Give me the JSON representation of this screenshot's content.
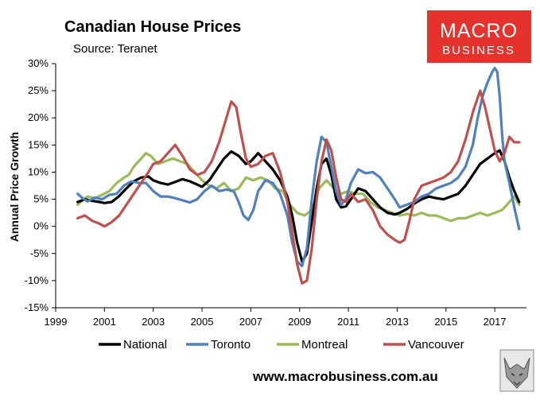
{
  "chart_data": {
    "type": "line",
    "title": "Canadian House Prices",
    "subtitle": "Source: Teranet",
    "xlabel": "",
    "ylabel": "Annual Price Growth",
    "xlim": [
      1999,
      2018.3
    ],
    "ylim": [
      -15,
      30
    ],
    "x_ticks": [
      "1999",
      "2001",
      "2003",
      "2005",
      "2007",
      "2009",
      "2011",
      "2013",
      "2015",
      "2017"
    ],
    "y_ticks": [
      "30%",
      "25%",
      "20%",
      "15%",
      "10%",
      "5%",
      "0%",
      "-5%",
      "-10%",
      "-15%"
    ],
    "grid": false,
    "legend_position": "bottom",
    "series": [
      {
        "name": "National",
        "color": "#000000",
        "points": [
          [
            1999.9,
            4.5
          ],
          [
            2000.2,
            5.0
          ],
          [
            2000.5,
            4.7
          ],
          [
            2000.8,
            4.5
          ],
          [
            2001.0,
            4.3
          ],
          [
            2001.3,
            4.5
          ],
          [
            2001.6,
            5.6
          ],
          [
            2001.9,
            7.0
          ],
          [
            2002.2,
            8.3
          ],
          [
            2002.5,
            9.0
          ],
          [
            2002.8,
            9.2
          ],
          [
            2003.0,
            8.5
          ],
          [
            2003.3,
            8.0
          ],
          [
            2003.6,
            7.7
          ],
          [
            2003.9,
            8.2
          ],
          [
            2004.2,
            8.7
          ],
          [
            2004.5,
            8.3
          ],
          [
            2004.8,
            7.7
          ],
          [
            2005.0,
            7.3
          ],
          [
            2005.3,
            8.5
          ],
          [
            2005.6,
            10.5
          ],
          [
            2005.9,
            12.5
          ],
          [
            2006.2,
            13.8
          ],
          [
            2006.5,
            13.0
          ],
          [
            2006.8,
            11.5
          ],
          [
            2007.0,
            12.0
          ],
          [
            2007.3,
            13.5
          ],
          [
            2007.6,
            12.0
          ],
          [
            2007.9,
            10.5
          ],
          [
            2008.2,
            8.5
          ],
          [
            2008.5,
            5.5
          ],
          [
            2008.7,
            2.0
          ],
          [
            2008.9,
            -3.0
          ],
          [
            2009.1,
            -6.5
          ],
          [
            2009.3,
            -5.0
          ],
          [
            2009.5,
            1.0
          ],
          [
            2009.7,
            7.0
          ],
          [
            2009.9,
            11.5
          ],
          [
            2010.1,
            12.5
          ],
          [
            2010.3,
            9.5
          ],
          [
            2010.5,
            5.0
          ],
          [
            2010.7,
            3.5
          ],
          [
            2010.9,
            3.7
          ],
          [
            2011.1,
            5.0
          ],
          [
            2011.4,
            7.0
          ],
          [
            2011.7,
            6.5
          ],
          [
            2012.0,
            5.0
          ],
          [
            2012.3,
            3.5
          ],
          [
            2012.6,
            2.5
          ],
          [
            2012.9,
            2.2
          ],
          [
            2013.1,
            2.5
          ],
          [
            2013.4,
            3.2
          ],
          [
            2013.7,
            4.2
          ],
          [
            2014.0,
            5.0
          ],
          [
            2014.3,
            5.5
          ],
          [
            2014.6,
            5.2
          ],
          [
            2014.9,
            5.0
          ],
          [
            2015.2,
            5.5
          ],
          [
            2015.5,
            6.0
          ],
          [
            2015.8,
            7.5
          ],
          [
            2016.1,
            9.5
          ],
          [
            2016.4,
            11.5
          ],
          [
            2016.7,
            12.5
          ],
          [
            2017.0,
            13.5
          ],
          [
            2017.2,
            14.0
          ],
          [
            2017.4,
            12.0
          ],
          [
            2017.6,
            9.0
          ],
          [
            2017.8,
            6.5
          ],
          [
            2018.0,
            4.5
          ]
        ]
      },
      {
        "name": "Toronto",
        "color": "#4f81bd",
        "points": [
          [
            1999.9,
            6.0
          ],
          [
            2000.1,
            5.2
          ],
          [
            2000.3,
            4.6
          ],
          [
            2000.6,
            5.3
          ],
          [
            2000.9,
            5.0
          ],
          [
            2001.2,
            5.8
          ],
          [
            2001.5,
            6.0
          ],
          [
            2001.8,
            7.5
          ],
          [
            2002.1,
            8.3
          ],
          [
            2002.4,
            8.0
          ],
          [
            2002.7,
            8.0
          ],
          [
            2003.0,
            6.5
          ],
          [
            2003.3,
            5.5
          ],
          [
            2003.6,
            5.5
          ],
          [
            2003.9,
            5.2
          ],
          [
            2004.2,
            4.8
          ],
          [
            2004.5,
            4.4
          ],
          [
            2004.8,
            5.0
          ],
          [
            2005.1,
            6.5
          ],
          [
            2005.4,
            7.5
          ],
          [
            2005.7,
            6.5
          ],
          [
            2006.0,
            6.8
          ],
          [
            2006.3,
            6.5
          ],
          [
            2006.5,
            4.5
          ],
          [
            2006.7,
            2.0
          ],
          [
            2006.9,
            1.2
          ],
          [
            2007.1,
            3.0
          ],
          [
            2007.3,
            6.5
          ],
          [
            2007.6,
            8.5
          ],
          [
            2007.9,
            8.0
          ],
          [
            2008.2,
            6.0
          ],
          [
            2008.5,
            2.0
          ],
          [
            2008.7,
            -3.0
          ],
          [
            2008.9,
            -6.5
          ],
          [
            2009.1,
            -7.3
          ],
          [
            2009.3,
            -4.0
          ],
          [
            2009.5,
            5.0
          ],
          [
            2009.7,
            12.0
          ],
          [
            2009.9,
            16.5
          ],
          [
            2010.1,
            15.5
          ],
          [
            2010.3,
            11.0
          ],
          [
            2010.5,
            6.5
          ],
          [
            2010.7,
            4.0
          ],
          [
            2010.9,
            5.0
          ],
          [
            2011.1,
            8.0
          ],
          [
            2011.4,
            10.5
          ],
          [
            2011.7,
            9.8
          ],
          [
            2012.0,
            10.0
          ],
          [
            2012.3,
            9.0
          ],
          [
            2012.6,
            7.0
          ],
          [
            2012.9,
            5.0
          ],
          [
            2013.1,
            3.5
          ],
          [
            2013.4,
            4.0
          ],
          [
            2013.7,
            4.5
          ],
          [
            2014.0,
            5.5
          ],
          [
            2014.3,
            6.0
          ],
          [
            2014.6,
            7.0
          ],
          [
            2014.9,
            7.5
          ],
          [
            2015.2,
            8.0
          ],
          [
            2015.5,
            9.0
          ],
          [
            2015.8,
            11.0
          ],
          [
            2016.1,
            15.0
          ],
          [
            2016.3,
            20.0
          ],
          [
            2016.5,
            24.0
          ],
          [
            2016.7,
            26.5
          ],
          [
            2016.9,
            28.5
          ],
          [
            2017.0,
            29.2
          ],
          [
            2017.1,
            28.5
          ],
          [
            2017.2,
            24.0
          ],
          [
            2017.3,
            17.0
          ],
          [
            2017.4,
            12.0
          ],
          [
            2017.6,
            8.0
          ],
          [
            2017.8,
            3.5
          ],
          [
            2018.0,
            -0.5
          ]
        ]
      },
      {
        "name": "Montreal",
        "color": "#9bbb59",
        "points": [
          [
            1999.9,
            4.0
          ],
          [
            2000.1,
            4.8
          ],
          [
            2000.3,
            5.5
          ],
          [
            2000.6,
            5.2
          ],
          [
            2000.9,
            5.8
          ],
          [
            2001.2,
            6.5
          ],
          [
            2001.5,
            8.0
          ],
          [
            2001.8,
            9.0
          ],
          [
            2002.0,
            9.5
          ],
          [
            2002.2,
            11.0
          ],
          [
            2002.5,
            12.5
          ],
          [
            2002.7,
            13.5
          ],
          [
            2002.9,
            13.0
          ],
          [
            2003.2,
            11.5
          ],
          [
            2003.5,
            12.0
          ],
          [
            2003.8,
            12.5
          ],
          [
            2004.1,
            12.0
          ],
          [
            2004.4,
            11.5
          ],
          [
            2004.7,
            10.0
          ],
          [
            2005.0,
            8.5
          ],
          [
            2005.3,
            7.5
          ],
          [
            2005.6,
            7.0
          ],
          [
            2005.9,
            8.0
          ],
          [
            2006.2,
            6.5
          ],
          [
            2006.5,
            7.0
          ],
          [
            2006.8,
            9.0
          ],
          [
            2007.1,
            8.5
          ],
          [
            2007.4,
            9.0
          ],
          [
            2007.7,
            8.5
          ],
          [
            2008.0,
            7.0
          ],
          [
            2008.3,
            6.5
          ],
          [
            2008.6,
            4.0
          ],
          [
            2008.9,
            2.5
          ],
          [
            2009.2,
            2.0
          ],
          [
            2009.5,
            3.0
          ],
          [
            2009.8,
            7.0
          ],
          [
            2010.1,
            8.5
          ],
          [
            2010.4,
            7.0
          ],
          [
            2010.7,
            6.0
          ],
          [
            2011.0,
            6.5
          ],
          [
            2011.3,
            6.0
          ],
          [
            2011.6,
            6.0
          ],
          [
            2011.9,
            4.5
          ],
          [
            2012.2,
            3.5
          ],
          [
            2012.5,
            3.0
          ],
          [
            2012.8,
            2.5
          ],
          [
            2013.1,
            2.0
          ],
          [
            2013.4,
            2.3
          ],
          [
            2013.7,
            2.0
          ],
          [
            2014.0,
            2.5
          ],
          [
            2014.3,
            2.0
          ],
          [
            2014.6,
            2.0
          ],
          [
            2014.9,
            1.5
          ],
          [
            2015.2,
            1.0
          ],
          [
            2015.5,
            1.5
          ],
          [
            2015.8,
            1.5
          ],
          [
            2016.1,
            2.0
          ],
          [
            2016.4,
            2.5
          ],
          [
            2016.7,
            2.0
          ],
          [
            2017.0,
            2.5
          ],
          [
            2017.3,
            3.0
          ],
          [
            2017.6,
            4.5
          ],
          [
            2017.8,
            5.5
          ],
          [
            2018.0,
            4.0
          ]
        ]
      },
      {
        "name": "Vancouver",
        "color": "#c0504d",
        "points": [
          [
            1999.9,
            1.5
          ],
          [
            2000.2,
            2.0
          ],
          [
            2000.5,
            1.0
          ],
          [
            2000.8,
            0.5
          ],
          [
            2001.0,
            0.0
          ],
          [
            2001.3,
            0.8
          ],
          [
            2001.6,
            2.0
          ],
          [
            2001.9,
            4.0
          ],
          [
            2002.2,
            6.0
          ],
          [
            2002.5,
            8.0
          ],
          [
            2002.8,
            10.0
          ],
          [
            2003.0,
            11.5
          ],
          [
            2003.3,
            12.0
          ],
          [
            2003.6,
            13.5
          ],
          [
            2003.9,
            15.0
          ],
          [
            2004.2,
            13.0
          ],
          [
            2004.5,
            10.5
          ],
          [
            2004.8,
            9.5
          ],
          [
            2005.1,
            10.0
          ],
          [
            2005.4,
            12.0
          ],
          [
            2005.7,
            15.5
          ],
          [
            2006.0,
            20.0
          ],
          [
            2006.2,
            23.0
          ],
          [
            2006.4,
            22.0
          ],
          [
            2006.6,
            17.0
          ],
          [
            2006.8,
            12.5
          ],
          [
            2007.0,
            11.0
          ],
          [
            2007.3,
            11.5
          ],
          [
            2007.6,
            13.0
          ],
          [
            2007.9,
            13.5
          ],
          [
            2008.2,
            10.0
          ],
          [
            2008.5,
            4.5
          ],
          [
            2008.7,
            -1.0
          ],
          [
            2008.9,
            -7.0
          ],
          [
            2009.1,
            -10.5
          ],
          [
            2009.3,
            -10.0
          ],
          [
            2009.5,
            -4.0
          ],
          [
            2009.7,
            5.0
          ],
          [
            2009.9,
            12.0
          ],
          [
            2010.1,
            16.0
          ],
          [
            2010.3,
            14.0
          ],
          [
            2010.5,
            9.0
          ],
          [
            2010.7,
            5.0
          ],
          [
            2010.9,
            4.5
          ],
          [
            2011.1,
            6.0
          ],
          [
            2011.4,
            4.5
          ],
          [
            2011.7,
            5.0
          ],
          [
            2012.0,
            3.0
          ],
          [
            2012.3,
            0.0
          ],
          [
            2012.6,
            -1.5
          ],
          [
            2012.9,
            -2.5
          ],
          [
            2013.1,
            -3.0
          ],
          [
            2013.3,
            -2.5
          ],
          [
            2013.5,
            1.0
          ],
          [
            2013.7,
            5.0
          ],
          [
            2014.0,
            7.5
          ],
          [
            2014.3,
            8.0
          ],
          [
            2014.6,
            8.5
          ],
          [
            2014.9,
            9.0
          ],
          [
            2015.2,
            10.0
          ],
          [
            2015.5,
            12.0
          ],
          [
            2015.8,
            16.0
          ],
          [
            2016.1,
            21.0
          ],
          [
            2016.4,
            25.0
          ],
          [
            2016.6,
            22.0
          ],
          [
            2016.8,
            18.0
          ],
          [
            2017.0,
            14.0
          ],
          [
            2017.2,
            12.0
          ],
          [
            2017.4,
            13.5
          ],
          [
            2017.6,
            16.5
          ],
          [
            2017.8,
            15.5
          ],
          [
            2018.0,
            15.5
          ]
        ]
      }
    ]
  },
  "logo": {
    "line1": "MACRO",
    "line2": "BUSINESS",
    "bg_color": "#e5322d"
  },
  "footer": {
    "website": "www.macrobusiness.com.au"
  }
}
